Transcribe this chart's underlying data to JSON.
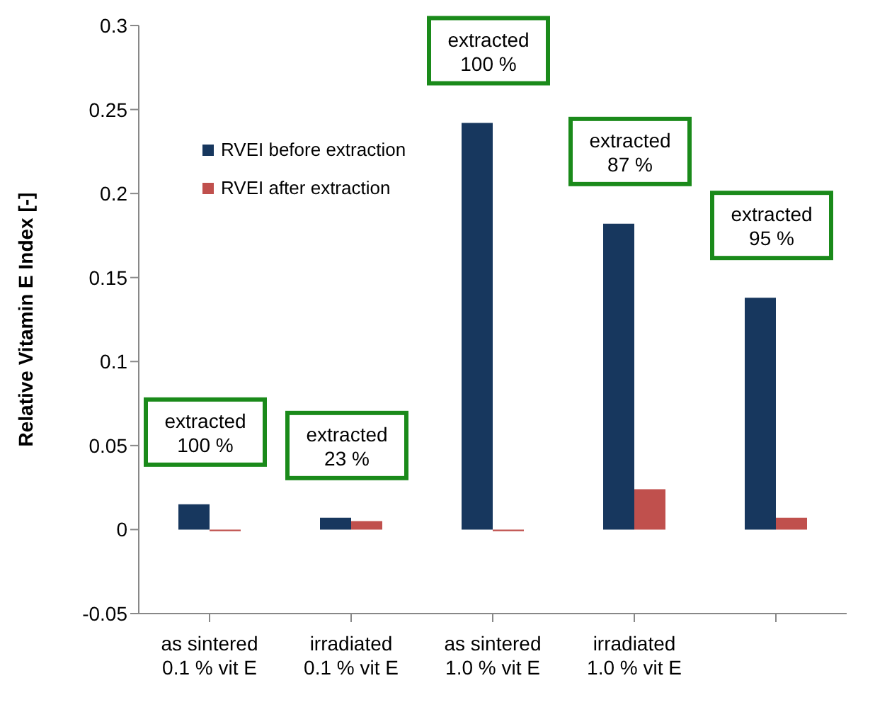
{
  "chart_data": {
    "type": "bar",
    "ylabel": "Relative Vitamin E Index [-]",
    "categories": [
      "as sintered\n0.1 % vit E",
      "irradiated\n0.1 % vit E",
      "as sintered\n1.0 % vit E",
      "irradiated\n1.0 % vit E",
      null
    ],
    "series": [
      {
        "name": "RVEI before extraction",
        "color": "#17375e",
        "values": [
          0.015,
          0.007,
          0.242,
          0.182,
          0.138
        ]
      },
      {
        "name": "RVEI after extraction",
        "color": "#c0504d",
        "values": [
          -0.001,
          0.005,
          -0.001,
          0.024,
          0.007
        ]
      }
    ],
    "ylim": [
      -0.05,
      0.3
    ],
    "yticks": [
      -0.05,
      0,
      0.05,
      0.1,
      0.15,
      0.2,
      0.25,
      0.3
    ],
    "annotations": [
      "extracted\n100 %",
      "extracted\n23 %",
      "extracted\n100 %",
      "extracted\n87 %",
      "extracted\n95 %"
    ],
    "legend": "top left"
  }
}
